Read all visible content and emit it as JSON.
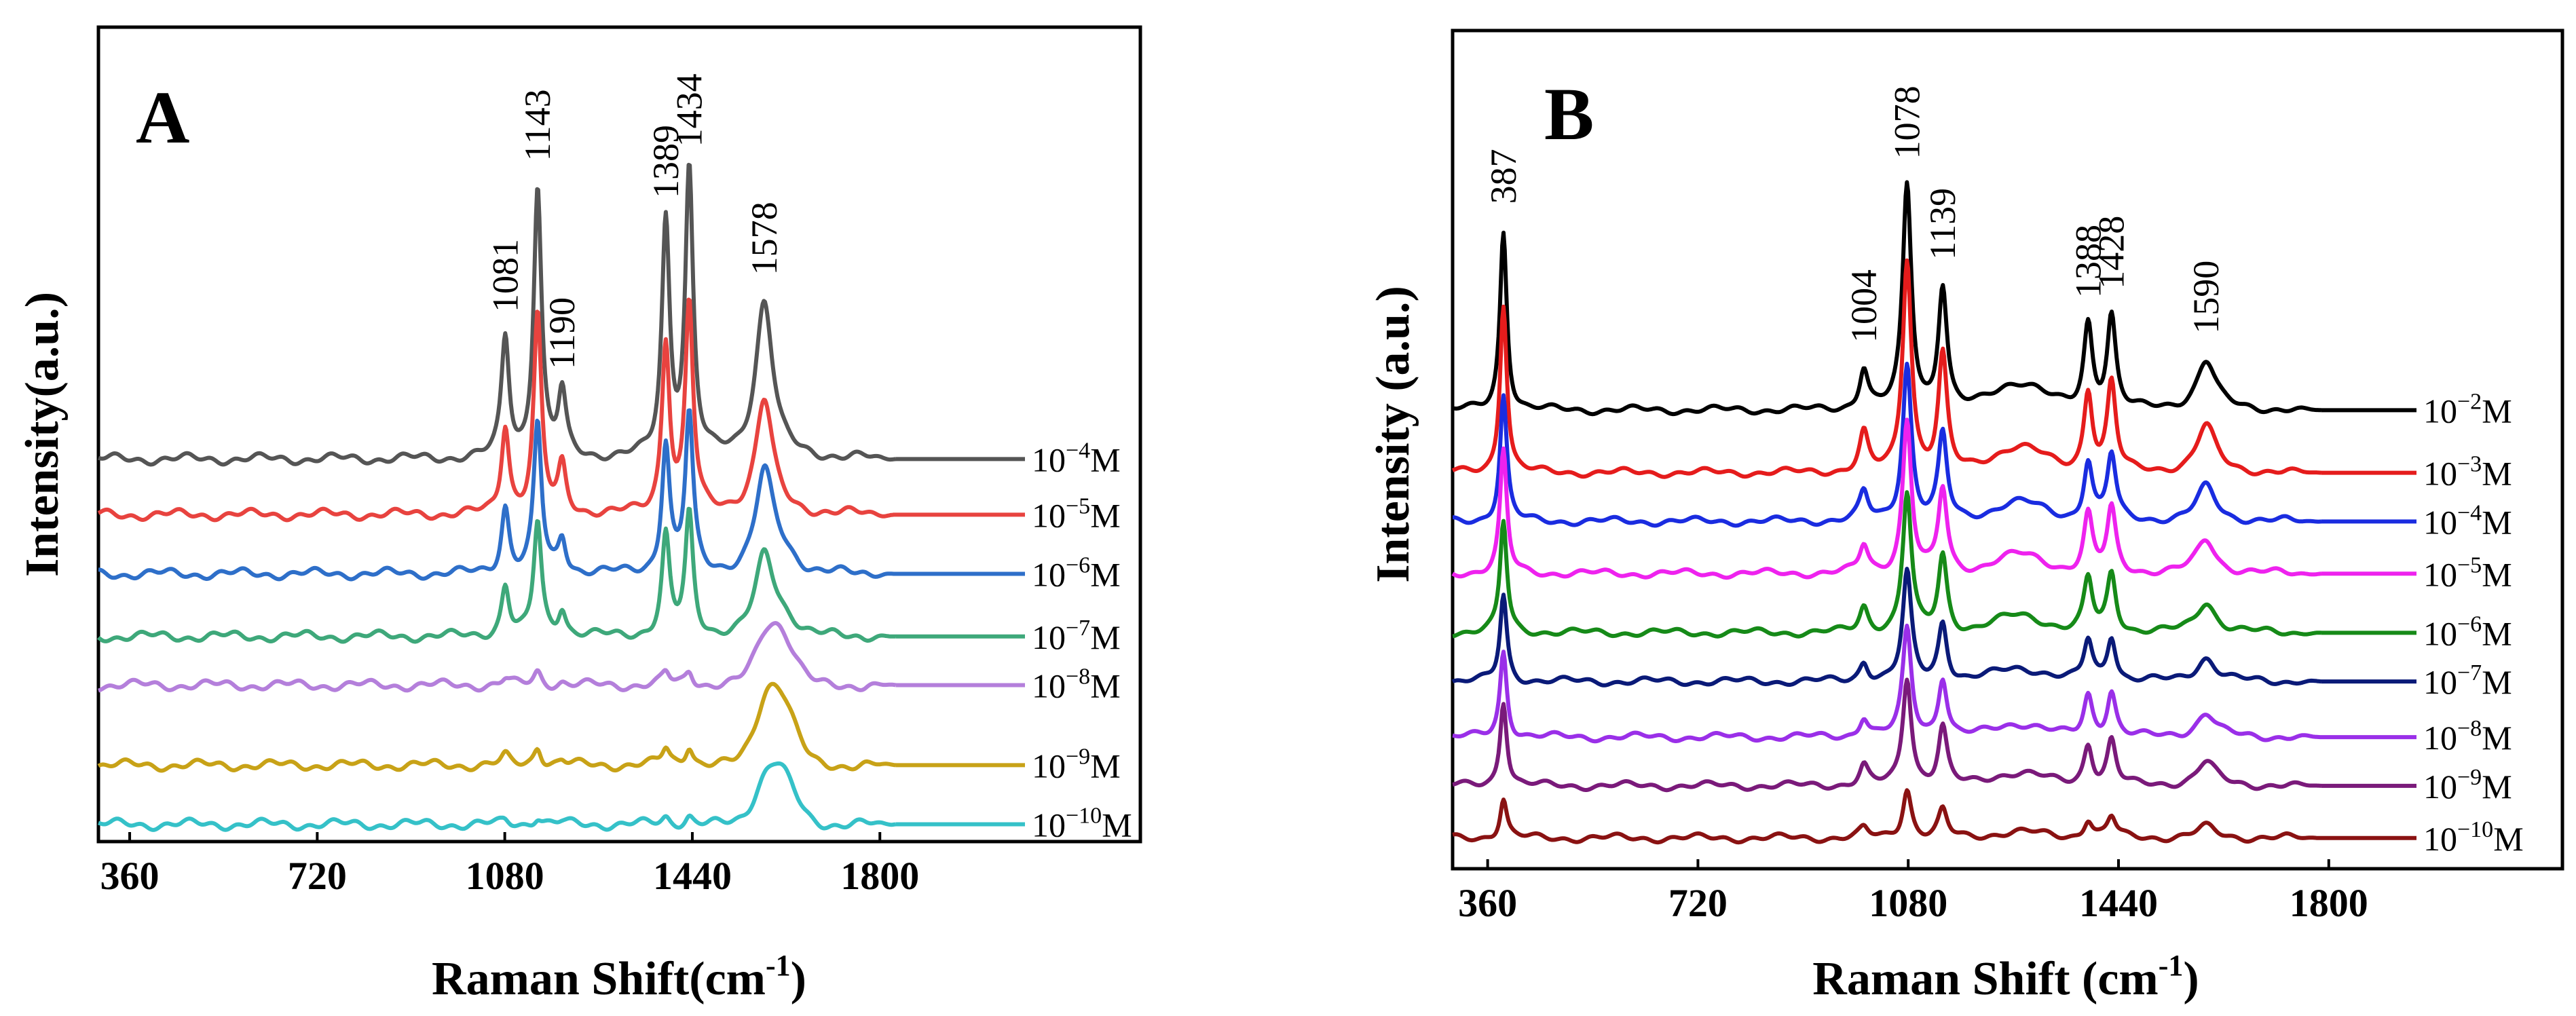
{
  "chart_data": [
    {
      "type": "line",
      "panel": "A",
      "xlabel": "Raman Shift(cm",
      "xlabel_sup": "-1",
      "xlabel_tail": ")",
      "ylabel": "Intensity(a.u.)",
      "xlim": [
        300,
        2300
      ],
      "xticks": [
        "360",
        "720",
        "1080",
        "1440",
        "1800"
      ],
      "grid": false,
      "legend": "right of traces, one label per spectrum",
      "peak_labels": [
        "1081",
        "1143",
        "1190",
        "1389",
        "1434",
        "1578"
      ],
      "peaks": [
        {
          "pos": 1081,
          "rel": 0.42
        },
        {
          "pos": 1143,
          "rel": 0.95
        },
        {
          "pos": 1190,
          "rel": 0.22
        },
        {
          "pos": 1389,
          "rel": 0.82
        },
        {
          "pos": 1434,
          "rel": 1.0
        },
        {
          "pos": 1578,
          "rel": 0.55
        }
      ],
      "series": [
        {
          "label_base": "10",
          "label_exp": "−4",
          "label_unit": "M",
          "color": "#555555",
          "baseline": 0.545,
          "scale": 1.0,
          "sers_bump": 0.0
        },
        {
          "label_base": "10",
          "label_exp": "−5",
          "label_unit": "M",
          "color": "#e8433f",
          "baseline": 0.465,
          "scale": 0.73,
          "sers_bump": 0.0
        },
        {
          "label_base": "10",
          "label_exp": "−6",
          "label_unit": "M",
          "color": "#2e6fc9",
          "baseline": 0.38,
          "scale": 0.55,
          "sers_bump": 0.25
        },
        {
          "label_base": "10",
          "label_exp": "−7",
          "label_unit": "M",
          "color": "#3ea87a",
          "baseline": 0.29,
          "scale": 0.42,
          "sers_bump": 0.25
        },
        {
          "label_base": "10",
          "label_exp": "−8",
          "label_unit": "M",
          "color": "#b47fdb",
          "baseline": 0.22,
          "scale": 0.05,
          "sers_bump": 0.7
        },
        {
          "label_base": "10",
          "label_exp": "−9",
          "label_unit": "M",
          "color": "#c8a217",
          "baseline": 0.105,
          "scale": 0.07,
          "sers_bump": 0.9
        },
        {
          "label_base": "10",
          "label_exp": "−10",
          "label_unit": "M",
          "color": "#35c1c8",
          "baseline": 0.02,
          "scale": 0.03,
          "sers_bump": 0.7
        }
      ]
    },
    {
      "type": "line",
      "panel": "B",
      "xlabel": "Raman Shift (cm",
      "xlabel_sup": "-1",
      "xlabel_tail": ")",
      "ylabel": "Intensity (a.u.)",
      "xlim": [
        300,
        2200
      ],
      "xticks": [
        "360",
        "720",
        "1080",
        "1440",
        "1800"
      ],
      "grid": false,
      "legend": "right of traces, one label per spectrum",
      "peak_labels": [
        "387",
        "1004",
        "1078",
        "1139",
        "1388",
        "1428",
        "1590"
      ],
      "peaks": [
        {
          "pos": 387,
          "rel": 0.8
        },
        {
          "pos": 1004,
          "rel": 0.18
        },
        {
          "pos": 1078,
          "rel": 1.0
        },
        {
          "pos": 1139,
          "rel": 0.55
        },
        {
          "pos": 1388,
          "rel": 0.38
        },
        {
          "pos": 1428,
          "rel": 0.42
        },
        {
          "pos": 1590,
          "rel": 0.22
        }
      ],
      "series": [
        {
          "label_base": "10",
          "label_exp": "−2",
          "label_unit": "M",
          "color": "#000000",
          "baseline": 0.625,
          "scale": 1.0
        },
        {
          "label_base": "10",
          "label_exp": "−3",
          "label_unit": "M",
          "color": "#e51c1c",
          "baseline": 0.535,
          "scale": 0.95
        },
        {
          "label_base": "10",
          "label_exp": "−4",
          "label_unit": "M",
          "color": "#1a2ce0",
          "baseline": 0.465,
          "scale": 0.7
        },
        {
          "label_base": "10",
          "label_exp": "−5",
          "label_unit": "M",
          "color": "#ee22ee",
          "baseline": 0.39,
          "scale": 0.68
        },
        {
          "label_base": "10",
          "label_exp": "−6",
          "label_unit": "M",
          "color": "#168a18",
          "baseline": 0.305,
          "scale": 0.62
        },
        {
          "label_base": "10",
          "label_exp": "−7",
          "label_unit": "M",
          "color": "#0a1a78",
          "baseline": 0.235,
          "scale": 0.48
        },
        {
          "label_base": "10",
          "label_exp": "−8",
          "label_unit": "M",
          "color": "#9a2fe8",
          "baseline": 0.155,
          "scale": 0.48
        },
        {
          "label_base": "10",
          "label_exp": "−9",
          "label_unit": "M",
          "color": "#7a1a7a",
          "baseline": 0.085,
          "scale": 0.48
        },
        {
          "label_base": "10",
          "label_exp": "−10",
          "label_unit": "M",
          "color": "#8a1212",
          "baseline": 0.01,
          "scale": 0.22
        }
      ]
    }
  ]
}
